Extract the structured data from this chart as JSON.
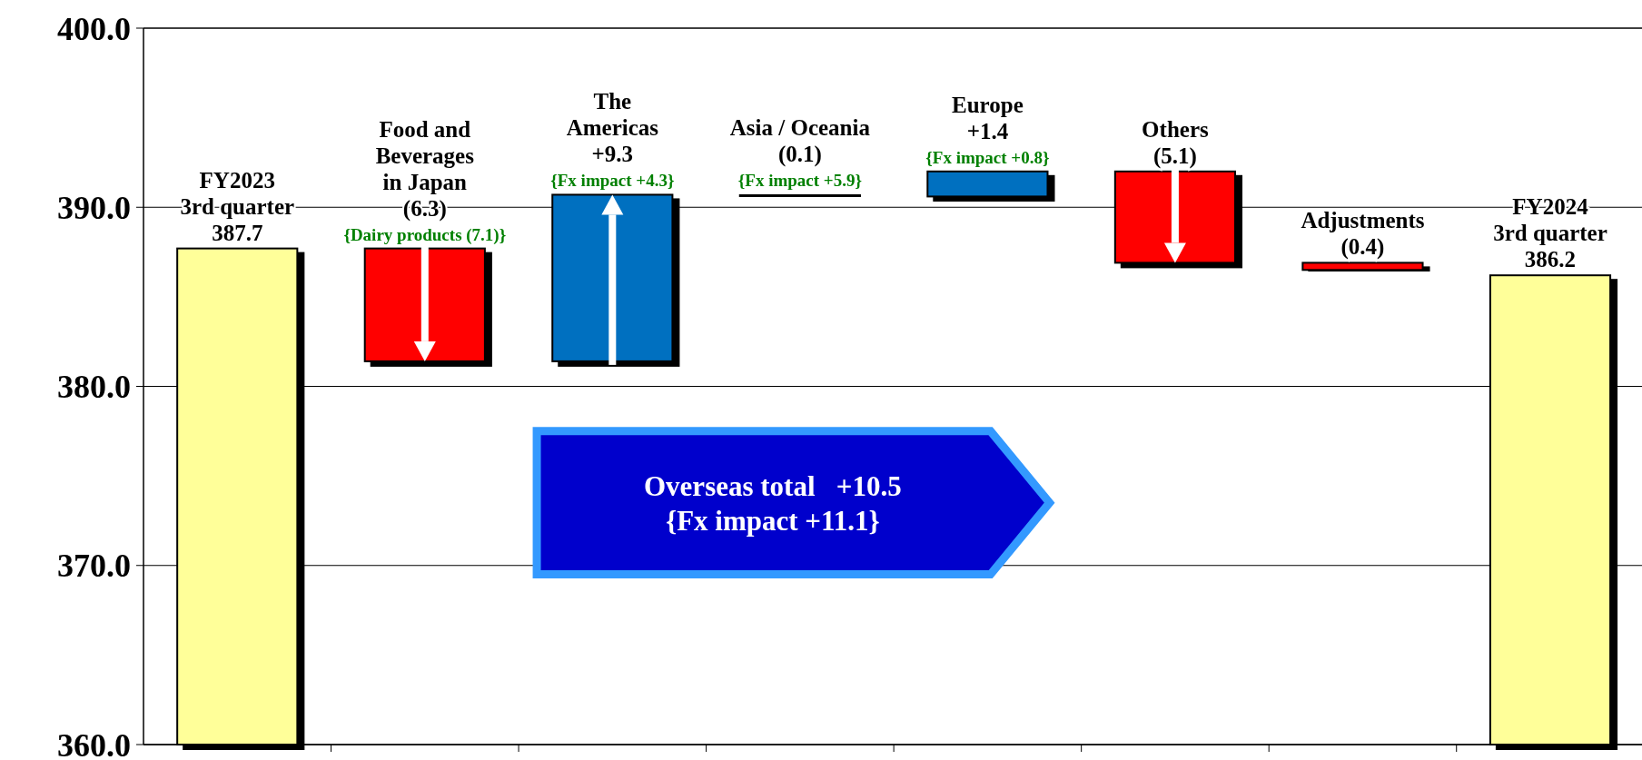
{
  "chart_data": {
    "type": "bar",
    "categories": [
      "FY2023\n3rd quarter",
      "Food and\nBeverages\nin Japan",
      "The\nAmericas",
      "Asia / Oceania",
      "Europe",
      "Others",
      "Adjustments",
      "FY2024\n3rd quarter"
    ],
    "values": [
      27.7,
      -6.3,
      9.3,
      -0.1,
      1.4,
      -5.1,
      -0.4,
      26.2
    ],
    "base": [
      360,
      387.7,
      381.4,
      390.7,
      390.6,
      392.0,
      386.9,
      360
    ],
    "colors": [
      "#ffff99",
      "#ff0000",
      "#0070c0",
      "#ff0000",
      "#0070c0",
      "#ff0000",
      "#ff0000",
      "#ffff99"
    ],
    "value_labels": [
      "387.7",
      "(6.3)",
      "+9.3",
      "(0.1)",
      "+1.4",
      "(5.1)",
      "(0.4)",
      "386.2"
    ],
    "ylim": [
      360,
      400
    ],
    "yticks": [
      {
        "value": 360,
        "label": "360.0"
      },
      {
        "value": 370,
        "label": "370.0"
      },
      {
        "value": 380,
        "label": "380.0"
      },
      {
        "value": 390,
        "label": "390.0"
      },
      {
        "value": 400,
        "label": "400.0"
      }
    ],
    "grid": "y",
    "annotations": [
      {
        "text": "{Dairy products (7.1)}",
        "x": "Food and\nBeverages\nin Japan",
        "y": 387.7
      },
      {
        "text": "{Fx impact +4.3}",
        "x": "The\nAmericas",
        "y": 390.7
      },
      {
        "text": "{Fx impact +5.9}",
        "x": "Asia / Oceania",
        "y": 390.7
      },
      {
        "text": "{Fx impact +0.8}",
        "x": "Europe",
        "y": 392.0
      },
      "Overseas total   +10.5\n{Fx impact +11.1}"
    ]
  }
}
